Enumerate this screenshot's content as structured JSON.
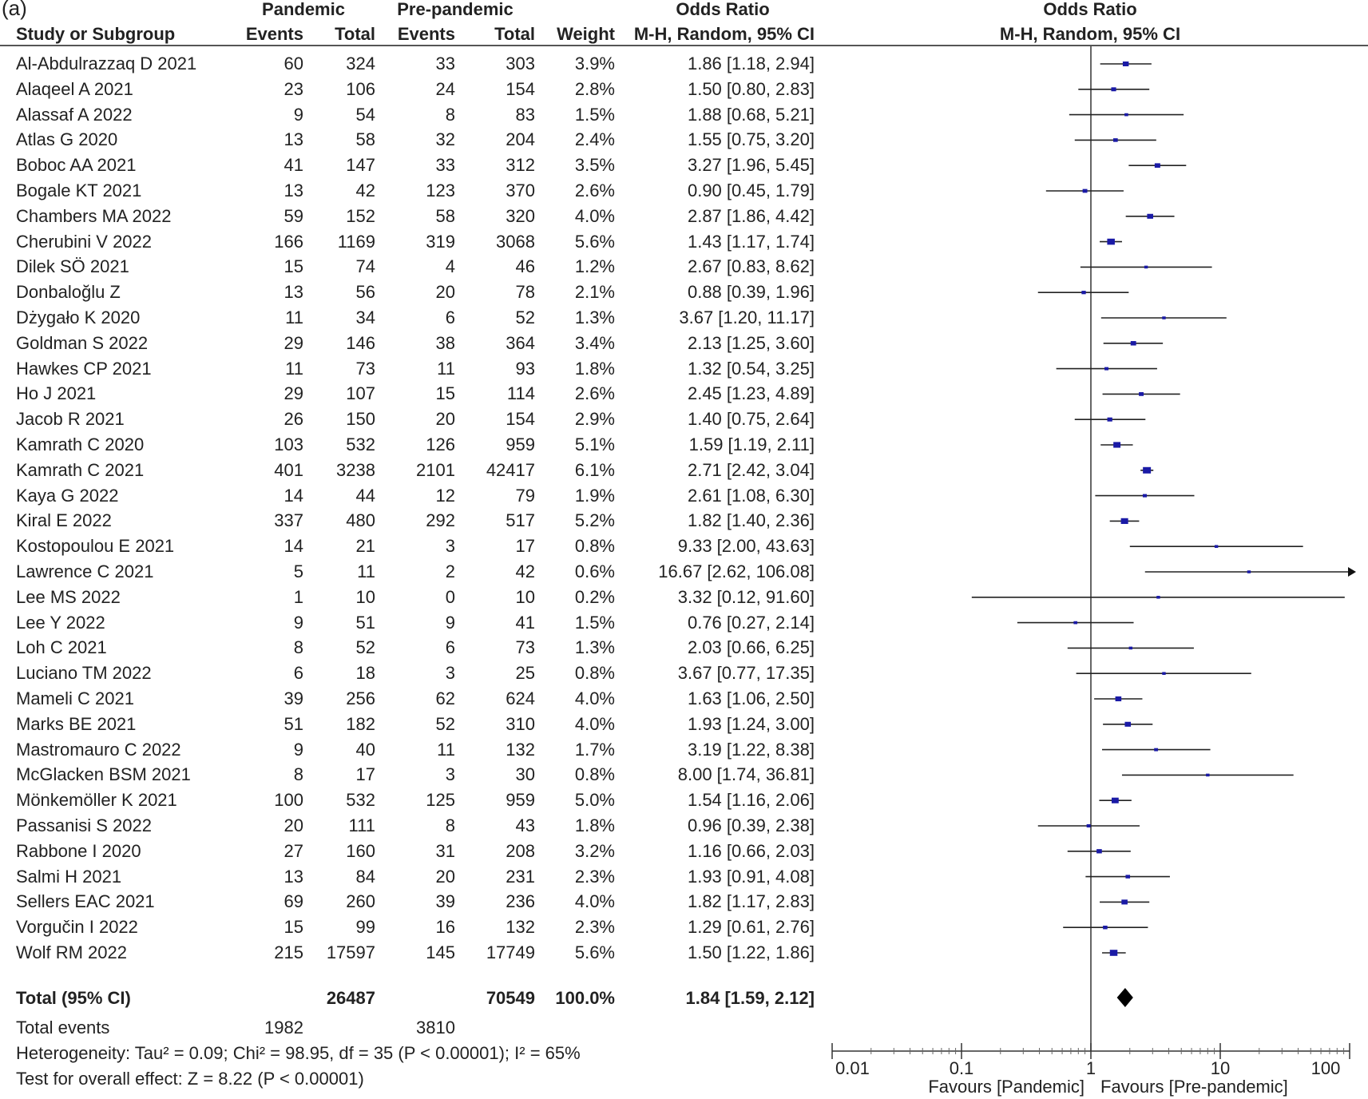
{
  "panel_label": "(a)",
  "headers": {
    "group1": "Pandemic",
    "group2": "Pre-pandemic",
    "or_table_title": "Odds Ratio",
    "or_table_sub": "M-H, Random, 95% CI",
    "study": "Study or Subgroup",
    "events": "Events",
    "total": "Total",
    "weight": "Weight",
    "plot_title": "Odds Ratio",
    "plot_sub": "M-H, Random, 95% CI"
  },
  "studies": [
    {
      "name": "Al-Abdulrazzaq D 2021",
      "e1": "60",
      "t1": "324",
      "e2": "33",
      "t2": "303",
      "w": "3.9%",
      "ci": "1.86 [1.18, 2.94]"
    },
    {
      "name": "Alaqeel A 2021",
      "e1": "23",
      "t1": "106",
      "e2": "24",
      "t2": "154",
      "w": "2.8%",
      "ci": "1.50 [0.80, 2.83]"
    },
    {
      "name": "Alassaf A 2022",
      "e1": "9",
      "t1": "54",
      "e2": "8",
      "t2": "83",
      "w": "1.5%",
      "ci": "1.88 [0.68, 5.21]"
    },
    {
      "name": "Atlas G 2020",
      "e1": "13",
      "t1": "58",
      "e2": "32",
      "t2": "204",
      "w": "2.4%",
      "ci": "1.55 [0.75, 3.20]"
    },
    {
      "name": "Boboc AA 2021",
      "e1": "41",
      "t1": "147",
      "e2": "33",
      "t2": "312",
      "w": "3.5%",
      "ci": "3.27 [1.96, 5.45]"
    },
    {
      "name": "Bogale KT 2021",
      "e1": "13",
      "t1": "42",
      "e2": "123",
      "t2": "370",
      "w": "2.6%",
      "ci": "0.90 [0.45, 1.79]"
    },
    {
      "name": "Chambers MA 2022",
      "e1": "59",
      "t1": "152",
      "e2": "58",
      "t2": "320",
      "w": "4.0%",
      "ci": "2.87 [1.86, 4.42]"
    },
    {
      "name": "Cherubini V 2022",
      "e1": "166",
      "t1": "1169",
      "e2": "319",
      "t2": "3068",
      "w": "5.6%",
      "ci": "1.43 [1.17, 1.74]"
    },
    {
      "name": "Dilek SÖ 2021",
      "e1": "15",
      "t1": "74",
      "e2": "4",
      "t2": "46",
      "w": "1.2%",
      "ci": "2.67 [0.83, 8.62]"
    },
    {
      "name": "Donbaloğlu Z",
      "e1": "13",
      "t1": "56",
      "e2": "20",
      "t2": "78",
      "w": "2.1%",
      "ci": "0.88 [0.39, 1.96]"
    },
    {
      "name": "Dżygało K 2020",
      "e1": "11",
      "t1": "34",
      "e2": "6",
      "t2": "52",
      "w": "1.3%",
      "ci": "3.67 [1.20, 11.17]"
    },
    {
      "name": "Goldman S 2022",
      "e1": "29",
      "t1": "146",
      "e2": "38",
      "t2": "364",
      "w": "3.4%",
      "ci": "2.13 [1.25, 3.60]"
    },
    {
      "name": "Hawkes CP 2021",
      "e1": "11",
      "t1": "73",
      "e2": "11",
      "t2": "93",
      "w": "1.8%",
      "ci": "1.32 [0.54, 3.25]"
    },
    {
      "name": "Ho J 2021",
      "e1": "29",
      "t1": "107",
      "e2": "15",
      "t2": "114",
      "w": "2.6%",
      "ci": "2.45 [1.23, 4.89]"
    },
    {
      "name": "Jacob R 2021",
      "e1": "26",
      "t1": "150",
      "e2": "20",
      "t2": "154",
      "w": "2.9%",
      "ci": "1.40 [0.75, 2.64]"
    },
    {
      "name": "Kamrath C 2020",
      "e1": "103",
      "t1": "532",
      "e2": "126",
      "t2": "959",
      "w": "5.1%",
      "ci": "1.59 [1.19, 2.11]"
    },
    {
      "name": "Kamrath C 2021",
      "e1": "401",
      "t1": "3238",
      "e2": "2101",
      "t2": "42417",
      "w": "6.1%",
      "ci": "2.71 [2.42, 3.04]"
    },
    {
      "name": "Kaya G 2022",
      "e1": "14",
      "t1": "44",
      "e2": "12",
      "t2": "79",
      "w": "1.9%",
      "ci": "2.61 [1.08, 6.30]"
    },
    {
      "name": "Kiral E 2022",
      "e1": "337",
      "t1": "480",
      "e2": "292",
      "t2": "517",
      "w": "5.2%",
      "ci": "1.82 [1.40, 2.36]"
    },
    {
      "name": "Kostopoulou E 2021",
      "e1": "14",
      "t1": "21",
      "e2": "3",
      "t2": "17",
      "w": "0.8%",
      "ci": "9.33 [2.00, 43.63]"
    },
    {
      "name": "Lawrence C 2021",
      "e1": "5",
      "t1": "11",
      "e2": "2",
      "t2": "42",
      "w": "0.6%",
      "ci": "16.67 [2.62, 106.08]"
    },
    {
      "name": "Lee MS 2022",
      "e1": "1",
      "t1": "10",
      "e2": "0",
      "t2": "10",
      "w": "0.2%",
      "ci": "3.32 [0.12, 91.60]"
    },
    {
      "name": "Lee Y 2022",
      "e1": "9",
      "t1": "51",
      "e2": "9",
      "t2": "41",
      "w": "1.5%",
      "ci": "0.76 [0.27, 2.14]"
    },
    {
      "name": "Loh C 2021",
      "e1": "8",
      "t1": "52",
      "e2": "6",
      "t2": "73",
      "w": "1.3%",
      "ci": "2.03 [0.66, 6.25]"
    },
    {
      "name": "Luciano TM 2022",
      "e1": "6",
      "t1": "18",
      "e2": "3",
      "t2": "25",
      "w": "0.8%",
      "ci": "3.67 [0.77, 17.35]"
    },
    {
      "name": "Mameli C 2021",
      "e1": "39",
      "t1": "256",
      "e2": "62",
      "t2": "624",
      "w": "4.0%",
      "ci": "1.63 [1.06, 2.50]"
    },
    {
      "name": "Marks BE 2021",
      "e1": "51",
      "t1": "182",
      "e2": "52",
      "t2": "310",
      "w": "4.0%",
      "ci": "1.93 [1.24, 3.00]"
    },
    {
      "name": "Mastromauro C 2022",
      "e1": "9",
      "t1": "40",
      "e2": "11",
      "t2": "132",
      "w": "1.7%",
      "ci": "3.19 [1.22, 8.38]"
    },
    {
      "name": "McGlacken BSM 2021",
      "e1": "8",
      "t1": "17",
      "e2": "3",
      "t2": "30",
      "w": "0.8%",
      "ci": "8.00 [1.74, 36.81]"
    },
    {
      "name": "Mönkemöller K 2021",
      "e1": "100",
      "t1": "532",
      "e2": "125",
      "t2": "959",
      "w": "5.0%",
      "ci": "1.54 [1.16, 2.06]"
    },
    {
      "name": "Passanisi S 2022",
      "e1": "20",
      "t1": "111",
      "e2": "8",
      "t2": "43",
      "w": "1.8%",
      "ci": "0.96 [0.39, 2.38]"
    },
    {
      "name": "Rabbone I 2020",
      "e1": "27",
      "t1": "160",
      "e2": "31",
      "t2": "208",
      "w": "3.2%",
      "ci": "1.16 [0.66, 2.03]"
    },
    {
      "name": "Salmi H 2021",
      "e1": "13",
      "t1": "84",
      "e2": "20",
      "t2": "231",
      "w": "2.3%",
      "ci": "1.93 [0.91, 4.08]"
    },
    {
      "name": "Sellers EAC 2021",
      "e1": "69",
      "t1": "260",
      "e2": "39",
      "t2": "236",
      "w": "4.0%",
      "ci": "1.82 [1.17, 2.83]"
    },
    {
      "name": "Vorgučin I 2022",
      "e1": "15",
      "t1": "99",
      "e2": "16",
      "t2": "132",
      "w": "2.3%",
      "ci": "1.29 [0.61, 2.76]"
    },
    {
      "name": "Wolf RM 2022",
      "e1": "215",
      "t1": "17597",
      "e2": "145",
      "t2": "17749",
      "w": "5.6%",
      "ci": "1.50 [1.22, 1.86]"
    }
  ],
  "total_row": {
    "label": "Total (95% CI)",
    "t1": "26487",
    "t2": "70549",
    "w": "100.0%",
    "ci": "1.84 [1.59, 2.12]"
  },
  "events_row": {
    "label": "Total events",
    "e1": "1982",
    "e2": "3810"
  },
  "heterogeneity": "Heterogeneity: Tau² = 0.09; Chi² = 98.95, df = 35 (P < 0.00001); I² = 65%",
  "overall_effect": "Test for overall effect: Z = 8.22 (P < 0.00001)",
  "axis": {
    "ticks": [
      0.01,
      0.1,
      1,
      10,
      100
    ],
    "tick_labels": [
      "0.01",
      "0.1",
      "1",
      "10",
      "100"
    ],
    "favours_left": "Favours [Pandemic]",
    "favours_right": "Favours [Pre-pandemic]"
  },
  "chart_data": {
    "type": "forest",
    "scale": "log",
    "xlim": [
      0.01,
      100
    ],
    "reference_line": 1,
    "point_color": "#1a1aa6",
    "studies": [
      {
        "or": 1.86,
        "lo": 1.18,
        "hi": 2.94
      },
      {
        "or": 1.5,
        "lo": 0.8,
        "hi": 2.83
      },
      {
        "or": 1.88,
        "lo": 0.68,
        "hi": 5.21
      },
      {
        "or": 1.55,
        "lo": 0.75,
        "hi": 3.2
      },
      {
        "or": 3.27,
        "lo": 1.96,
        "hi": 5.45
      },
      {
        "or": 0.9,
        "lo": 0.45,
        "hi": 1.79
      },
      {
        "or": 2.87,
        "lo": 1.86,
        "hi": 4.42
      },
      {
        "or": 1.43,
        "lo": 1.17,
        "hi": 1.74
      },
      {
        "or": 2.67,
        "lo": 0.83,
        "hi": 8.62
      },
      {
        "or": 0.88,
        "lo": 0.39,
        "hi": 1.96
      },
      {
        "or": 3.67,
        "lo": 1.2,
        "hi": 11.17
      },
      {
        "or": 2.13,
        "lo": 1.25,
        "hi": 3.6
      },
      {
        "or": 1.32,
        "lo": 0.54,
        "hi": 3.25
      },
      {
        "or": 2.45,
        "lo": 1.23,
        "hi": 4.89
      },
      {
        "or": 1.4,
        "lo": 0.75,
        "hi": 2.64
      },
      {
        "or": 1.59,
        "lo": 1.19,
        "hi": 2.11
      },
      {
        "or": 2.71,
        "lo": 2.42,
        "hi": 3.04
      },
      {
        "or": 2.61,
        "lo": 1.08,
        "hi": 6.3
      },
      {
        "or": 1.82,
        "lo": 1.4,
        "hi": 2.36
      },
      {
        "or": 9.33,
        "lo": 2.0,
        "hi": 43.63
      },
      {
        "or": 16.67,
        "lo": 2.62,
        "hi": 106.08
      },
      {
        "or": 3.32,
        "lo": 0.12,
        "hi": 91.6
      },
      {
        "or": 0.76,
        "lo": 0.27,
        "hi": 2.14
      },
      {
        "or": 2.03,
        "lo": 0.66,
        "hi": 6.25
      },
      {
        "or": 3.67,
        "lo": 0.77,
        "hi": 17.35
      },
      {
        "or": 1.63,
        "lo": 1.06,
        "hi": 2.5
      },
      {
        "or": 1.93,
        "lo": 1.24,
        "hi": 3.0
      },
      {
        "or": 3.19,
        "lo": 1.22,
        "hi": 8.38
      },
      {
        "or": 8.0,
        "lo": 1.74,
        "hi": 36.81
      },
      {
        "or": 1.54,
        "lo": 1.16,
        "hi": 2.06
      },
      {
        "or": 0.96,
        "lo": 0.39,
        "hi": 2.38
      },
      {
        "or": 1.16,
        "lo": 0.66,
        "hi": 2.03
      },
      {
        "or": 1.93,
        "lo": 0.91,
        "hi": 4.08
      },
      {
        "or": 1.82,
        "lo": 1.17,
        "hi": 2.83
      },
      {
        "or": 1.29,
        "lo": 0.61,
        "hi": 2.76
      },
      {
        "or": 1.5,
        "lo": 1.22,
        "hi": 1.86
      }
    ],
    "pooled": {
      "or": 1.84,
      "lo": 1.59,
      "hi": 2.12
    }
  }
}
